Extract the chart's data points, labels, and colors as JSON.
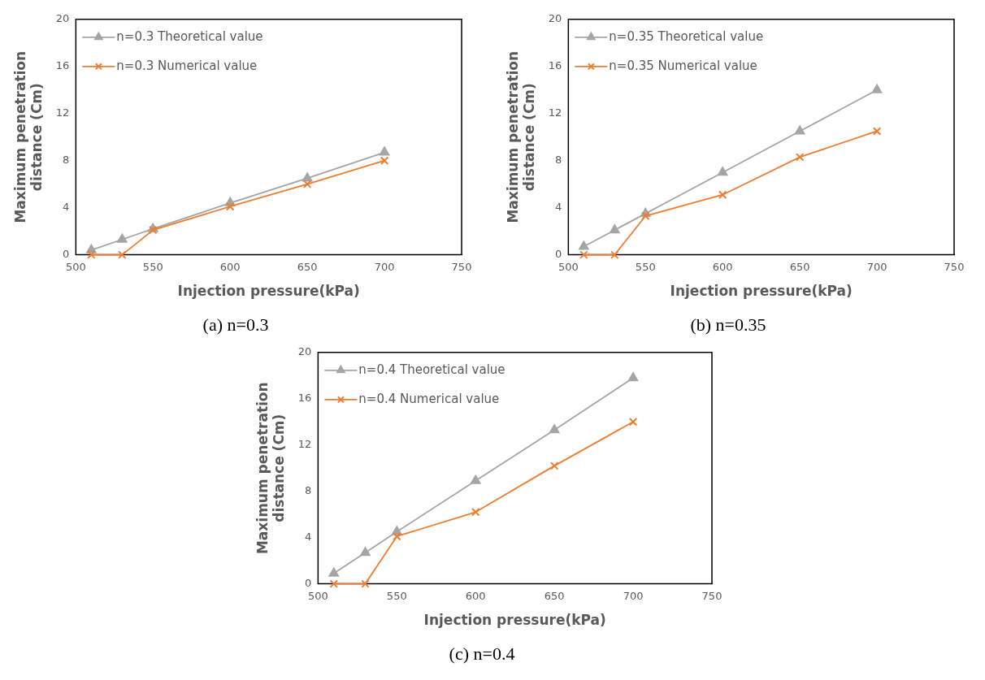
{
  "chart_data": [
    {
      "type": "line",
      "title": "(a) n=0.3",
      "xlabel": "Injection pressure(kPa)",
      "ylabel": "Maximum penetration distance (Cm)",
      "x": [
        510,
        530,
        550,
        600,
        650,
        700
      ],
      "xlim": [
        500,
        750
      ],
      "xticks": [
        500,
        550,
        600,
        650,
        700,
        750
      ],
      "ylim": [
        0,
        20
      ],
      "yticks": [
        0,
        4,
        8,
        12,
        16,
        20
      ],
      "grid": false,
      "legend": "top left",
      "series": [
        {
          "name": "n=0.3 Theoretical value",
          "color": "#a5a5a5",
          "marker": "triangle",
          "values": [
            0.4,
            1.3,
            2.2,
            4.4,
            6.5,
            8.7
          ]
        },
        {
          "name": "n=0.3 Numerical value",
          "color": "#ed7d31",
          "marker": "cross",
          "values": [
            0,
            0,
            2.1,
            4.1,
            6.0,
            8.0
          ]
        }
      ]
    },
    {
      "type": "line",
      "title": "(b) n=0.35",
      "xlabel": "Injection pressure(kPa)",
      "ylabel": "Maximum penetration distance (Cm)",
      "x": [
        510,
        530,
        550,
        600,
        650,
        700
      ],
      "xlim": [
        500,
        750
      ],
      "xticks": [
        500,
        550,
        600,
        650,
        700,
        750
      ],
      "ylim": [
        0,
        20
      ],
      "yticks": [
        0,
        4,
        8,
        12,
        16,
        20
      ],
      "grid": false,
      "legend": "top left",
      "series": [
        {
          "name": "n=0.35 Theoretical value",
          "color": "#a5a5a5",
          "marker": "triangle",
          "values": [
            0.7,
            2.1,
            3.5,
            7.0,
            10.5,
            14.0
          ]
        },
        {
          "name": "n=0.35 Numerical value",
          "color": "#ed7d31",
          "marker": "cross",
          "values": [
            0,
            0,
            3.3,
            5.1,
            8.3,
            10.5
          ]
        }
      ]
    },
    {
      "type": "line",
      "title": "(c) n=0.4",
      "xlabel": "Injection pressure(kPa)",
      "ylabel": "Maximum penetration distance (Cm)",
      "x": [
        510,
        530,
        550,
        600,
        650,
        700
      ],
      "xlim": [
        500,
        750
      ],
      "xticks": [
        500,
        550,
        600,
        650,
        700,
        750
      ],
      "ylim": [
        0,
        20
      ],
      "yticks": [
        0,
        4,
        8,
        12,
        16,
        20
      ],
      "grid": false,
      "legend": "top left",
      "series": [
        {
          "name": "n=0.4 Theoretical value",
          "color": "#a5a5a5",
          "marker": "triangle",
          "values": [
            0.9,
            2.7,
            4.5,
            8.9,
            13.3,
            17.8
          ]
        },
        {
          "name": "n=0.4 Numerical value",
          "color": "#ed7d31",
          "marker": "cross",
          "values": [
            0,
            0,
            4.1,
            6.2,
            10.2,
            14.0
          ]
        }
      ]
    }
  ]
}
